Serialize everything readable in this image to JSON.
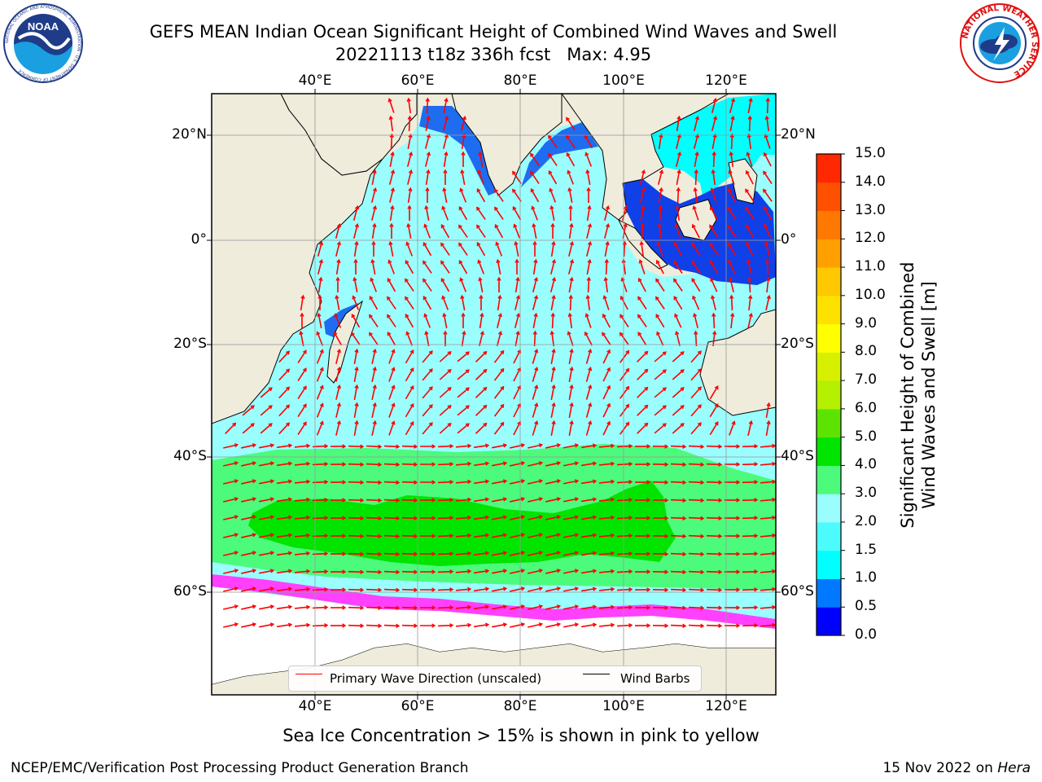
{
  "title": {
    "line1": "GEFS MEAN Indian Ocean Significant Height of Combined Wind Waves and Swell",
    "line2": "20221113 t18z 336h fcst   Max: 4.95"
  },
  "logos": {
    "left": {
      "icon": "noaa-logo",
      "text": "NOAA",
      "ring_text": "NATIONAL OCEANIC AND ATMOSPHERIC ADMINISTRATION · U.S. DEPARTMENT OF COMMERCE"
    },
    "right": {
      "icon": "national-weather-service-logo",
      "ring_text": "NATIONAL WEATHER SERVICE"
    }
  },
  "map": {
    "lon_labels": [
      "40°E",
      "60°E",
      "80°E",
      "100°E",
      "120°E"
    ],
    "lat_labels": [
      "20°N",
      "0°",
      "20°S",
      "40°S",
      "60°S"
    ],
    "gridlines": true,
    "colors": {
      "land": "#efecdc",
      "ocean_low": "#00ffff",
      "ocean_mid": "#9afefe",
      "ocean_high": "#4cfb7c",
      "ocean_peak": "#00e400",
      "ice": "#ff40ff",
      "wave_arrow": "#ff0000",
      "wind_barb": "#000000"
    }
  },
  "legend": {
    "items": [
      {
        "label": "Primary Wave Direction (unscaled)",
        "color": "#ff0000"
      },
      {
        "label": "Wind Barbs",
        "color": "#000000"
      }
    ]
  },
  "colorbar": {
    "label_line1": "Significant Height of Combined",
    "label_line2": "Wind Waves and Swell [m]",
    "ticks": [
      "0.0",
      "0.5",
      "1.0",
      "1.5",
      "2.0",
      "3.0",
      "4.0",
      "5.0",
      "6.0",
      "7.0",
      "8.0",
      "9.0",
      "10.0",
      "11.0",
      "12.0",
      "13.0",
      "14.0",
      "15.0"
    ],
    "colors": [
      "#0000ff",
      "#0078ff",
      "#00ffff",
      "#4cfbfb",
      "#9afefe",
      "#4cfb7c",
      "#00e400",
      "#5ce400",
      "#b4f000",
      "#d7f000",
      "#ffff00",
      "#ffe100",
      "#ffc800",
      "#ffa000",
      "#ff7800",
      "#ff5000",
      "#ff2800"
    ]
  },
  "subcaption": "Sea Ice Concentration > 15% is shown in pink to yellow",
  "footer": {
    "left": "NCEP/EMC/Verification Post Processing Product Generation Branch",
    "right_date": "15 Nov 2022 on",
    "right_host": "Hera"
  }
}
